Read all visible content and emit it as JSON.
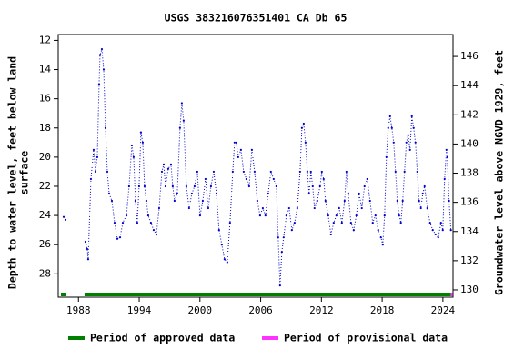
{
  "chart_data": {
    "type": "line",
    "title": "USGS 383216076351401 CA Db  65",
    "y_label": [
      "Depth to water level, feet below land",
      "surface"
    ],
    "y2_label": "Groundwater level above NGVD 1929, feet",
    "xlim": [
      1986,
      2025
    ],
    "xticks": [
      1988,
      1994,
      2000,
      2006,
      2012,
      2018,
      2024
    ],
    "ylim": [
      29.6,
      11.6
    ],
    "yticks": [
      12,
      14,
      16,
      18,
      20,
      22,
      24,
      26,
      28
    ],
    "y2lim": [
      129.5,
      147.5
    ],
    "y2ticks": [
      130,
      132,
      134,
      136,
      138,
      140,
      142,
      144,
      146
    ],
    "color": "#0000cc",
    "x": [
      1986.54,
      1986.72,
      1987.6,
      1988.69,
      1988.87,
      1988.96,
      1989.23,
      1989.5,
      1989.68,
      1989.86,
      1990.04,
      1990.13,
      1990.31,
      1990.49,
      1990.67,
      1990.85,
      1991.03,
      1991.3,
      1991.57,
      1991.84,
      1992.11,
      1992.38,
      1992.74,
      1993.0,
      1993.27,
      1993.45,
      1993.63,
      1993.81,
      1993.99,
      1994.17,
      1994.35,
      1994.53,
      1994.71,
      1994.89,
      1995.16,
      1995.43,
      1995.7,
      1995.97,
      1996.24,
      1996.42,
      1996.6,
      1996.87,
      1997.14,
      1997.31,
      1997.49,
      1997.76,
      1998.03,
      1998.21,
      1998.39,
      1998.66,
      1998.93,
      1999.2,
      1999.47,
      1999.74,
      2000.01,
      2000.28,
      2000.55,
      2000.82,
      2001.09,
      2001.36,
      2001.63,
      2001.89,
      2002.16,
      2002.43,
      2002.7,
      2002.97,
      2003.24,
      2003.42,
      2003.6,
      2003.78,
      2004.05,
      2004.32,
      2004.59,
      2004.86,
      2005.13,
      2005.4,
      2005.67,
      2005.94,
      2006.21,
      2006.47,
      2006.74,
      2007.01,
      2007.28,
      2007.55,
      2007.73,
      2007.91,
      2008.09,
      2008.27,
      2008.54,
      2008.81,
      2009.08,
      2009.35,
      2009.62,
      2009.89,
      2010.07,
      2010.25,
      2010.43,
      2010.61,
      2010.78,
      2010.96,
      2011.14,
      2011.32,
      2011.59,
      2011.86,
      2012.04,
      2012.22,
      2012.4,
      2012.67,
      2012.94,
      2013.21,
      2013.48,
      2013.75,
      2014.02,
      2014.29,
      2014.47,
      2014.65,
      2014.92,
      2015.19,
      2015.45,
      2015.72,
      2015.99,
      2016.26,
      2016.53,
      2016.8,
      2017.07,
      2017.34,
      2017.61,
      2017.88,
      2018.06,
      2018.24,
      2018.42,
      2018.6,
      2018.78,
      2018.96,
      2019.14,
      2019.32,
      2019.5,
      2019.68,
      2019.85,
      2020.03,
      2020.21,
      2020.39,
      2020.57,
      2020.75,
      2020.93,
      2021.11,
      2021.29,
      2021.47,
      2021.65,
      2021.83,
      2022.01,
      2022.19,
      2022.46,
      2022.73,
      2023.0,
      2023.27,
      2023.54,
      2023.81,
      2023.99,
      2024.17,
      2024.35,
      2024.43,
      2024.61,
      2024.79
    ],
    "values": [
      24.1,
      24.3,
      null,
      25.8,
      26.3,
      27.0,
      21.5,
      19.5,
      21,
      20,
      15,
      13,
      12.6,
      14,
      18,
      21,
      22.5,
      23,
      24.5,
      25.6,
      25.5,
      24.5,
      24,
      22,
      19.2,
      20,
      23,
      24.5,
      22,
      18.3,
      19,
      22,
      23,
      24,
      24.5,
      25,
      25.3,
      23.5,
      21,
      20.5,
      22,
      20.8,
      20.5,
      22,
      23,
      22.5,
      18,
      16.3,
      17.5,
      22,
      23.5,
      22.5,
      22,
      21,
      24,
      23,
      21.5,
      23.5,
      22,
      21,
      22.5,
      25,
      26,
      27,
      27.2,
      24.5,
      21,
      19,
      19,
      20,
      19.5,
      21,
      21.5,
      22,
      19.5,
      21,
      23,
      24,
      23.5,
      24,
      22.5,
      21,
      21.5,
      22,
      25.5,
      28.8,
      26.5,
      25.5,
      24,
      23.5,
      25,
      24.5,
      23.5,
      21,
      18,
      17.7,
      19,
      21,
      22.5,
      21,
      22,
      23.5,
      23,
      22,
      21,
      21.5,
      23,
      24,
      25.3,
      24.5,
      24,
      23.5,
      24.5,
      23,
      21,
      22.5,
      24.5,
      25,
      24,
      22.5,
      23.5,
      22,
      21.5,
      23,
      24.5,
      24,
      25,
      25.5,
      26,
      24,
      20,
      18,
      17.2,
      18,
      19,
      21,
      23,
      24,
      24.5,
      23,
      21,
      19,
      18.5,
      19.5,
      17.2,
      18,
      19,
      21,
      23,
      23.5,
      22.5,
      22,
      23.5,
      24.5,
      25,
      25.3,
      25.5,
      24.5,
      25,
      21.5,
      19.5,
      20,
      23,
      25
    ],
    "periods": [
      {
        "name": "Period of approved data",
        "color": "#008000",
        "ranges": [
          [
            1986.27,
            1986.81
          ],
          [
            1988.6,
            2024.79
          ]
        ]
      },
      {
        "name": "Period of provisional data",
        "color": "#ff33ff",
        "ranges": [
          [
            2024.79,
            2024.97
          ]
        ]
      }
    ]
  }
}
